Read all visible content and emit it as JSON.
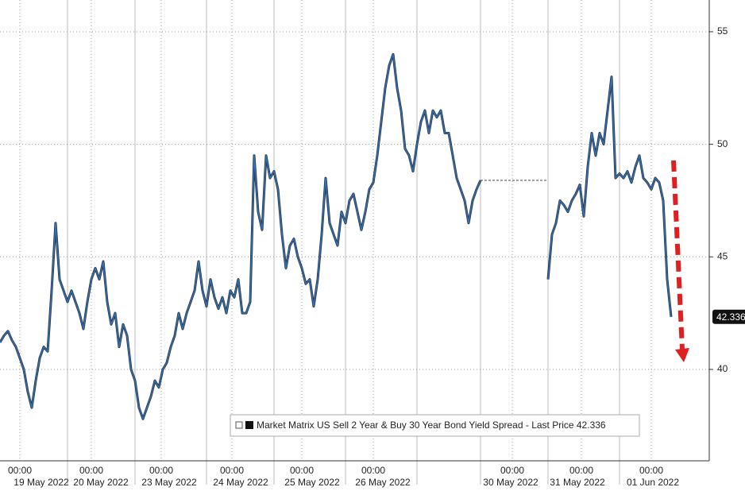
{
  "chart_data": {
    "type": "line",
    "series": [
      {
        "name": "Market Matrix US Sell 2 Year & Buy 30 Year Bond Yield Spread - Last Price 42.336",
        "color": "#2a73c4",
        "values": [
          41.2,
          41.5,
          41.7,
          41.3,
          41.0,
          40.5,
          40.0,
          39.0,
          38.3,
          39.5,
          40.5,
          41.0,
          40.8,
          43.5,
          46.5,
          44.0,
          43.5,
          43.0,
          43.5,
          43.0,
          42.5,
          41.8,
          43.0,
          44.0,
          44.5,
          44.0,
          44.8,
          43.0,
          42.0,
          42.5,
          41.0,
          42.0,
          41.5,
          40.0,
          39.5,
          38.3,
          37.8,
          38.3,
          38.8,
          39.5,
          39.2,
          40.0,
          40.3,
          41.0,
          41.5,
          42.5,
          41.8,
          42.5,
          43.0,
          43.5,
          44.8,
          43.5,
          42.8,
          44.0,
          43.2,
          42.7,
          43.2,
          42.5,
          43.5,
          43.2,
          44.0,
          42.5,
          42.5,
          43.0,
          49.5,
          47.0,
          46.2,
          49.5,
          48.5,
          48.8,
          48.0,
          46.0,
          44.5,
          45.5,
          45.8,
          45.0,
          44.5,
          43.8,
          44.0,
          42.8,
          44.0,
          46.0,
          48.5,
          46.5,
          46.0,
          45.5,
          47.0,
          46.5,
          47.5,
          47.8,
          47.0,
          46.2,
          47.0,
          48.0,
          48.3,
          49.5,
          51.0,
          52.5,
          53.5,
          54.0,
          52.5,
          51.5,
          49.8,
          49.5,
          48.8,
          50.0,
          51.0,
          51.5,
          50.5,
          51.5,
          51.2,
          51.5,
          50.5,
          50.5,
          49.5,
          48.5,
          48.0,
          47.5,
          46.5,
          47.5,
          48.0,
          48.4,
          null,
          null,
          null,
          null,
          null,
          null,
          null,
          null,
          null,
          null,
          null,
          null,
          null,
          null,
          null,
          null,
          44.0,
          46.0,
          46.5,
          47.5,
          47.3,
          47.0,
          47.5,
          47.8,
          48.2,
          46.8,
          49.0,
          50.5,
          49.5,
          50.5,
          50.0,
          51.5,
          53.0,
          48.5,
          48.7,
          48.5,
          48.8,
          48.3,
          49.0,
          49.5,
          48.5,
          48.3,
          48.0,
          48.5,
          48.3,
          47.5,
          44.0,
          42.336
        ]
      }
    ],
    "xlim": [
      0,
      178.6
    ],
    "xticks": [
      {
        "value": 5,
        "label": "00:00"
      },
      {
        "value": 23,
        "label": "00:00"
      },
      {
        "value": 40.6,
        "label": "00:00"
      },
      {
        "value": 58.4,
        "label": "00:00"
      },
      {
        "value": 76,
        "label": "00:00"
      },
      {
        "value": 94,
        "label": "00:00"
      },
      {
        "value": 129,
        "label": "00:00"
      },
      {
        "value": 146.4,
        "label": "00:00"
      },
      {
        "value": 164,
        "label": "00:00"
      }
    ],
    "xtick_dates": [
      {
        "value": 10.4,
        "label": "19 May 2022"
      },
      {
        "value": 25.4,
        "label": "20 May 2022"
      },
      {
        "value": 42.6,
        "label": "23 May 2022"
      },
      {
        "value": 60.6,
        "label": "24 May 2022"
      },
      {
        "value": 78.6,
        "label": "25 May 2022"
      },
      {
        "value": 96.4,
        "label": "26 May 2022"
      },
      {
        "value": 128.6,
        "label": "30 May 2022"
      },
      {
        "value": 145.4,
        "label": "31 May 2022"
      },
      {
        "value": 164.4,
        "label": "01 Jun 2022"
      }
    ],
    "day_separators": [
      17,
      34,
      52,
      69,
      87,
      105,
      121,
      138,
      156
    ],
    "ylim": [
      35.94,
      56.41
    ],
    "yticks": [
      40,
      45,
      50,
      55
    ],
    "grid": true,
    "legend": "bottom-center"
  }
}
